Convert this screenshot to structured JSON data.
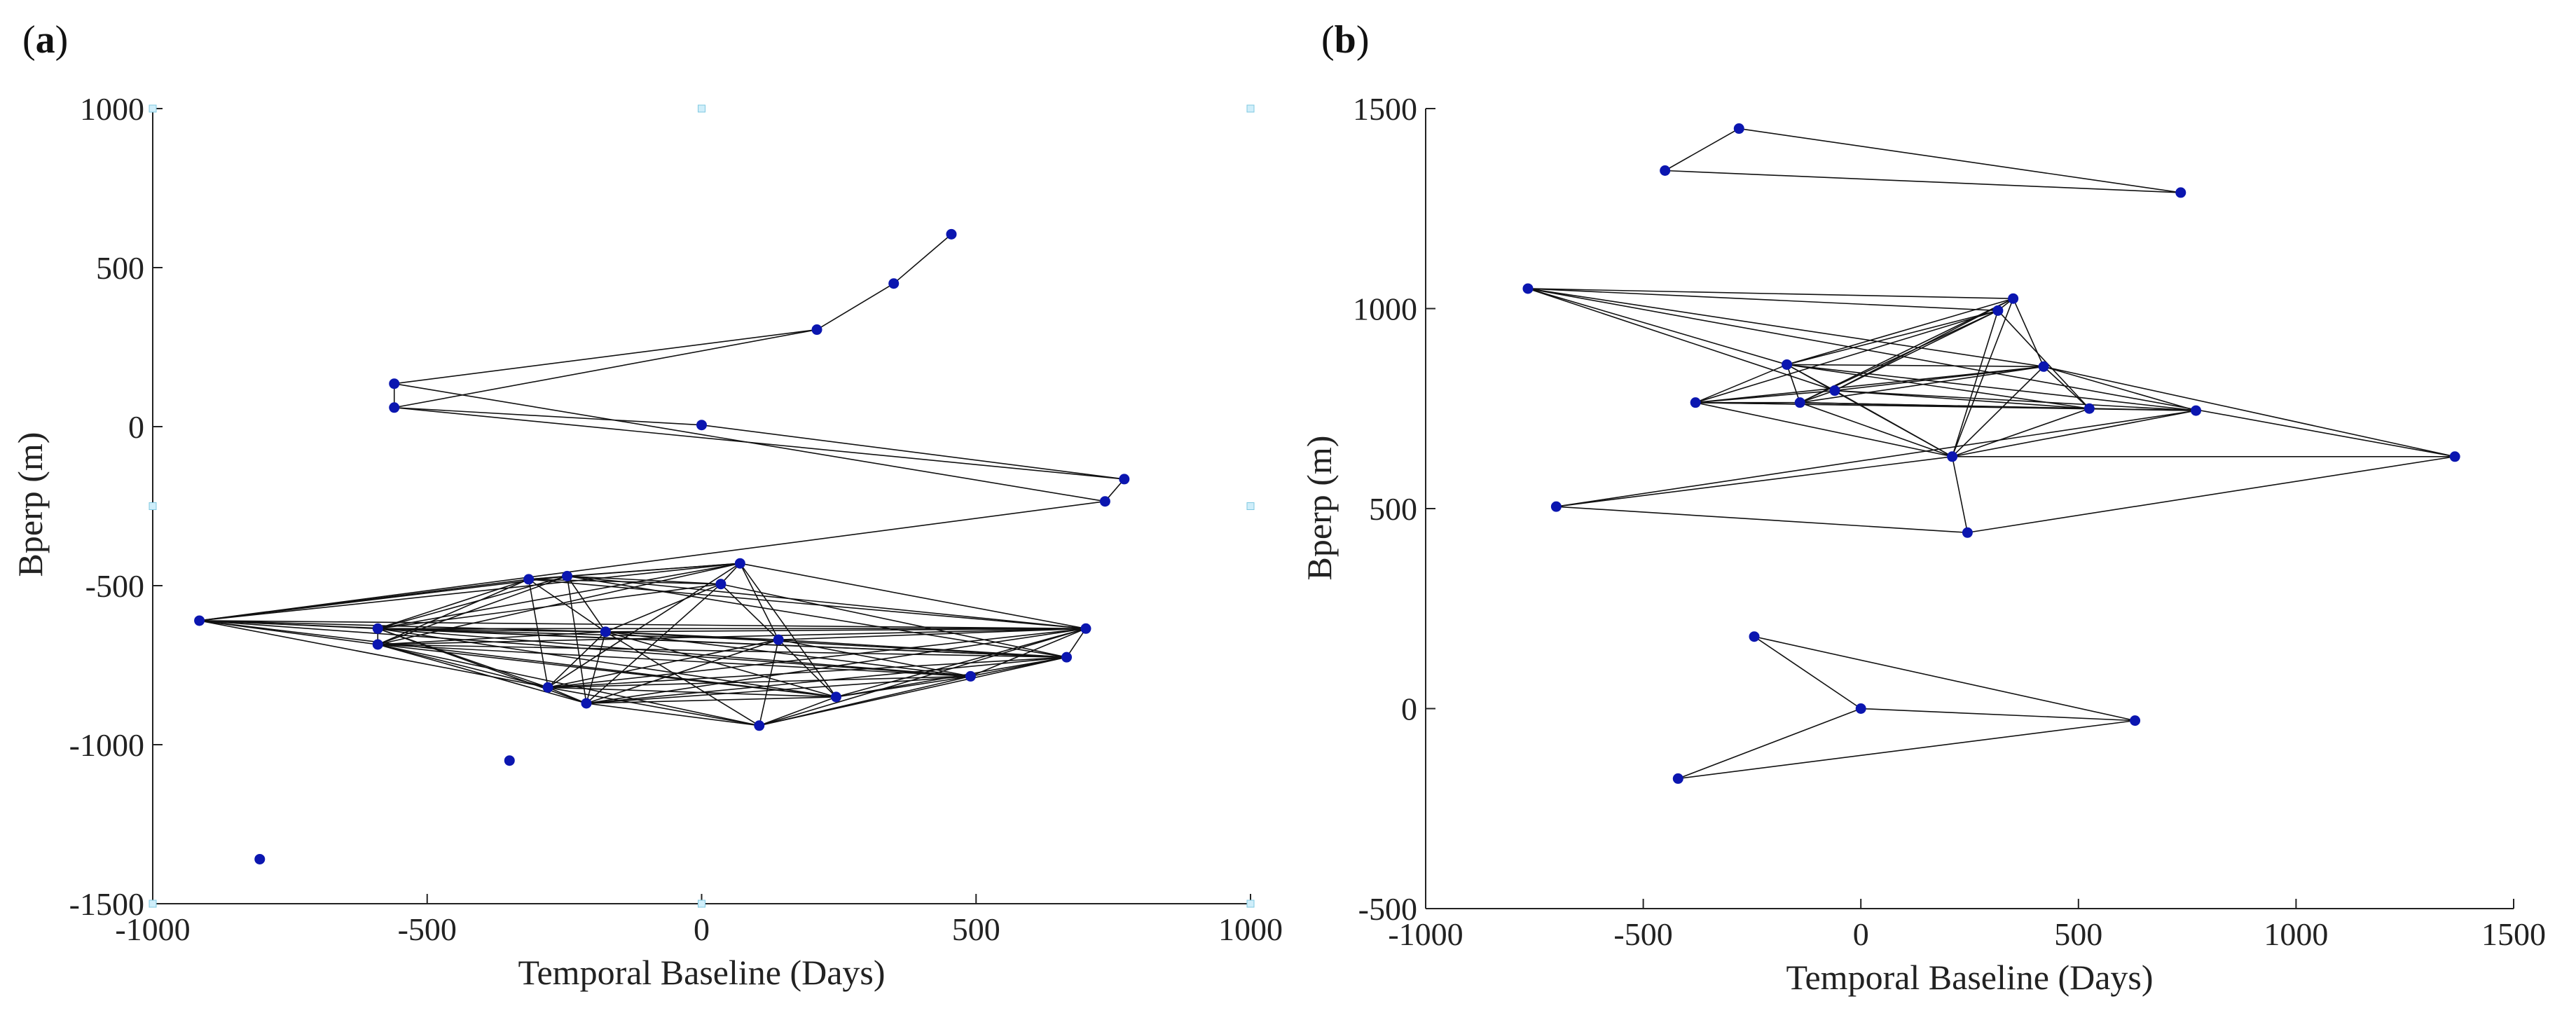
{
  "chart_data": [
    {
      "panel": "(a)",
      "type": "scatter",
      "xlabel": "Temporal Baseline (Days)",
      "ylabel": "Bperp (m)",
      "xlim": [
        -1000,
        1000
      ],
      "ylim": [
        -1500,
        1000
      ],
      "xticks": [
        -1000,
        -500,
        0,
        500,
        1000
      ],
      "yticks": [
        1000,
        500,
        0,
        -500,
        -1000,
        -1500
      ],
      "grid": false,
      "points": [
        {
          "x": 455,
          "y": 605
        },
        {
          "x": 350,
          "y": 450
        },
        {
          "x": 210,
          "y": 305
        },
        {
          "x": -560,
          "y": 135
        },
        {
          "x": -560,
          "y": 60
        },
        {
          "x": 0,
          "y": 5
        },
        {
          "x": 770,
          "y": -165
        },
        {
          "x": 735,
          "y": -235
        },
        {
          "x": -915,
          "y": -610
        },
        {
          "x": -315,
          "y": -480
        },
        {
          "x": -245,
          "y": -470
        },
        {
          "x": 70,
          "y": -430
        },
        {
          "x": 35,
          "y": -495
        },
        {
          "x": -590,
          "y": -635
        },
        {
          "x": -590,
          "y": -685
        },
        {
          "x": -175,
          "y": -645
        },
        {
          "x": 140,
          "y": -670
        },
        {
          "x": 700,
          "y": -635
        },
        {
          "x": 665,
          "y": -725
        },
        {
          "x": 490,
          "y": -785
        },
        {
          "x": -280,
          "y": -820
        },
        {
          "x": -210,
          "y": -870
        },
        {
          "x": 245,
          "y": -850
        },
        {
          "x": 105,
          "y": -940
        },
        {
          "x": -350,
          "y": -1050
        },
        {
          "x": -805,
          "y": -1360
        }
      ],
      "edges": [
        [
          0,
          1
        ],
        [
          1,
          2
        ],
        [
          2,
          3
        ],
        [
          2,
          4
        ],
        [
          3,
          4
        ],
        [
          3,
          7
        ],
        [
          4,
          5
        ],
        [
          4,
          6
        ],
        [
          5,
          6
        ],
        [
          6,
          7
        ],
        [
          7,
          8
        ],
        [
          8,
          9
        ],
        [
          8,
          10
        ],
        [
          8,
          11
        ],
        [
          8,
          13
        ],
        [
          8,
          14
        ],
        [
          8,
          15
        ],
        [
          8,
          17
        ],
        [
          8,
          18
        ],
        [
          8,
          19
        ],
        [
          8,
          22
        ],
        [
          8,
          20
        ],
        [
          9,
          10
        ],
        [
          9,
          11
        ],
        [
          9,
          13
        ],
        [
          9,
          14
        ],
        [
          9,
          15
        ],
        [
          9,
          17
        ],
        [
          9,
          20
        ],
        [
          9,
          12
        ],
        [
          10,
          11
        ],
        [
          10,
          13
        ],
        [
          10,
          14
        ],
        [
          10,
          15
        ],
        [
          10,
          17
        ],
        [
          10,
          18
        ],
        [
          10,
          21
        ],
        [
          10,
          12
        ],
        [
          11,
          12
        ],
        [
          11,
          13
        ],
        [
          11,
          14
        ],
        [
          11,
          16
        ],
        [
          11,
          17
        ],
        [
          11,
          20
        ],
        [
          11,
          22
        ],
        [
          12,
          13
        ],
        [
          12,
          15
        ],
        [
          12,
          16
        ],
        [
          12,
          18
        ],
        [
          12,
          21
        ],
        [
          13,
          14
        ],
        [
          13,
          15
        ],
        [
          13,
          16
        ],
        [
          13,
          17
        ],
        [
          13,
          18
        ],
        [
          13,
          19
        ],
        [
          13,
          20
        ],
        [
          13,
          21
        ],
        [
          13,
          22
        ],
        [
          14,
          15
        ],
        [
          14,
          17
        ],
        [
          14,
          18
        ],
        [
          14,
          19
        ],
        [
          14,
          20
        ],
        [
          14,
          21
        ],
        [
          14,
          22
        ],
        [
          14,
          23
        ],
        [
          15,
          16
        ],
        [
          15,
          17
        ],
        [
          15,
          18
        ],
        [
          15,
          19
        ],
        [
          15,
          20
        ],
        [
          15,
          21
        ],
        [
          15,
          22
        ],
        [
          15,
          23
        ],
        [
          16,
          17
        ],
        [
          16,
          18
        ],
        [
          16,
          19
        ],
        [
          16,
          20
        ],
        [
          16,
          21
        ],
        [
          16,
          22
        ],
        [
          16,
          23
        ],
        [
          17,
          18
        ],
        [
          17,
          19
        ],
        [
          17,
          20
        ],
        [
          17,
          21
        ],
        [
          17,
          22
        ],
        [
          17,
          23
        ],
        [
          18,
          19
        ],
        [
          18,
          20
        ],
        [
          18,
          21
        ],
        [
          18,
          22
        ],
        [
          18,
          23
        ],
        [
          19,
          20
        ],
        [
          19,
          21
        ],
        [
          19,
          22
        ],
        [
          19,
          23
        ],
        [
          20,
          21
        ],
        [
          20,
          22
        ],
        [
          20,
          23
        ],
        [
          21,
          22
        ],
        [
          21,
          23
        ],
        [
          22,
          23
        ]
      ],
      "reference_markers": [
        {
          "x": -1000,
          "y": 1000
        },
        {
          "x": 0,
          "y": 1000
        },
        {
          "x": 1000,
          "y": 1000
        },
        {
          "x": -1000,
          "y": -250
        },
        {
          "x": 1000,
          "y": -250
        },
        {
          "x": -1000,
          "y": -1500
        },
        {
          "x": 0,
          "y": -1500
        },
        {
          "x": 1000,
          "y": -1500
        }
      ]
    },
    {
      "panel": "(b)",
      "type": "scatter",
      "xlabel": "Temporal Baseline (Days)",
      "ylabel": "Bperp (m)",
      "xlim": [
        -1000,
        1500
      ],
      "ylim": [
        -500,
        1500
      ],
      "xticks": [
        -1000,
        -500,
        0,
        500,
        1000,
        1500
      ],
      "yticks": [
        1500,
        1000,
        500,
        0,
        -500
      ],
      "grid": false,
      "points": [
        {
          "x": -450,
          "y": 1345
        },
        {
          "x": -280,
          "y": 1450
        },
        {
          "x": 735,
          "y": 1290
        },
        {
          "x": -765,
          "y": 1050
        },
        {
          "x": 350,
          "y": 1025
        },
        {
          "x": 315,
          "y": 995
        },
        {
          "x": -170,
          "y": 860
        },
        {
          "x": 420,
          "y": 855
        },
        {
          "x": -60,
          "y": 795
        },
        {
          "x": -380,
          "y": 765
        },
        {
          "x": -140,
          "y": 765
        },
        {
          "x": 525,
          "y": 750
        },
        {
          "x": 770,
          "y": 745
        },
        {
          "x": 210,
          "y": 630
        },
        {
          "x": 1365,
          "y": 630
        },
        {
          "x": -700,
          "y": 505
        },
        {
          "x": 245,
          "y": 440
        },
        {
          "x": -245,
          "y": 180
        },
        {
          "x": 0,
          "y": 0
        },
        {
          "x": 630,
          "y": -30
        },
        {
          "x": -420,
          "y": -175
        }
      ],
      "edges": [
        [
          0,
          1
        ],
        [
          1,
          2
        ],
        [
          0,
          2
        ],
        [
          3,
          4
        ],
        [
          3,
          5
        ],
        [
          3,
          6
        ],
        [
          3,
          7
        ],
        [
          3,
          8
        ],
        [
          3,
          14
        ],
        [
          4,
          5
        ],
        [
          4,
          6
        ],
        [
          4,
          8
        ],
        [
          4,
          10
        ],
        [
          4,
          7
        ],
        [
          4,
          13
        ],
        [
          5,
          6
        ],
        [
          5,
          8
        ],
        [
          5,
          9
        ],
        [
          5,
          10
        ],
        [
          5,
          11
        ],
        [
          5,
          13
        ],
        [
          6,
          7
        ],
        [
          6,
          8
        ],
        [
          6,
          9
        ],
        [
          6,
          10
        ],
        [
          6,
          11
        ],
        [
          6,
          12
        ],
        [
          6,
          13
        ],
        [
          7,
          8
        ],
        [
          7,
          9
        ],
        [
          7,
          10
        ],
        [
          7,
          11
        ],
        [
          7,
          12
        ],
        [
          7,
          13
        ],
        [
          7,
          14
        ],
        [
          8,
          9
        ],
        [
          8,
          10
        ],
        [
          8,
          11
        ],
        [
          8,
          12
        ],
        [
          8,
          13
        ],
        [
          9,
          10
        ],
        [
          9,
          11
        ],
        [
          9,
          12
        ],
        [
          9,
          13
        ],
        [
          10,
          11
        ],
        [
          10,
          12
        ],
        [
          10,
          13
        ],
        [
          11,
          12
        ],
        [
          11,
          13
        ],
        [
          12,
          13
        ],
        [
          13,
          14
        ],
        [
          13,
          15
        ],
        [
          13,
          16
        ],
        [
          12,
          15
        ],
        [
          15,
          16
        ],
        [
          16,
          14
        ],
        [
          17,
          18
        ],
        [
          17,
          19
        ],
        [
          18,
          19
        ],
        [
          19,
          20
        ],
        [
          18,
          20
        ]
      ]
    }
  ]
}
